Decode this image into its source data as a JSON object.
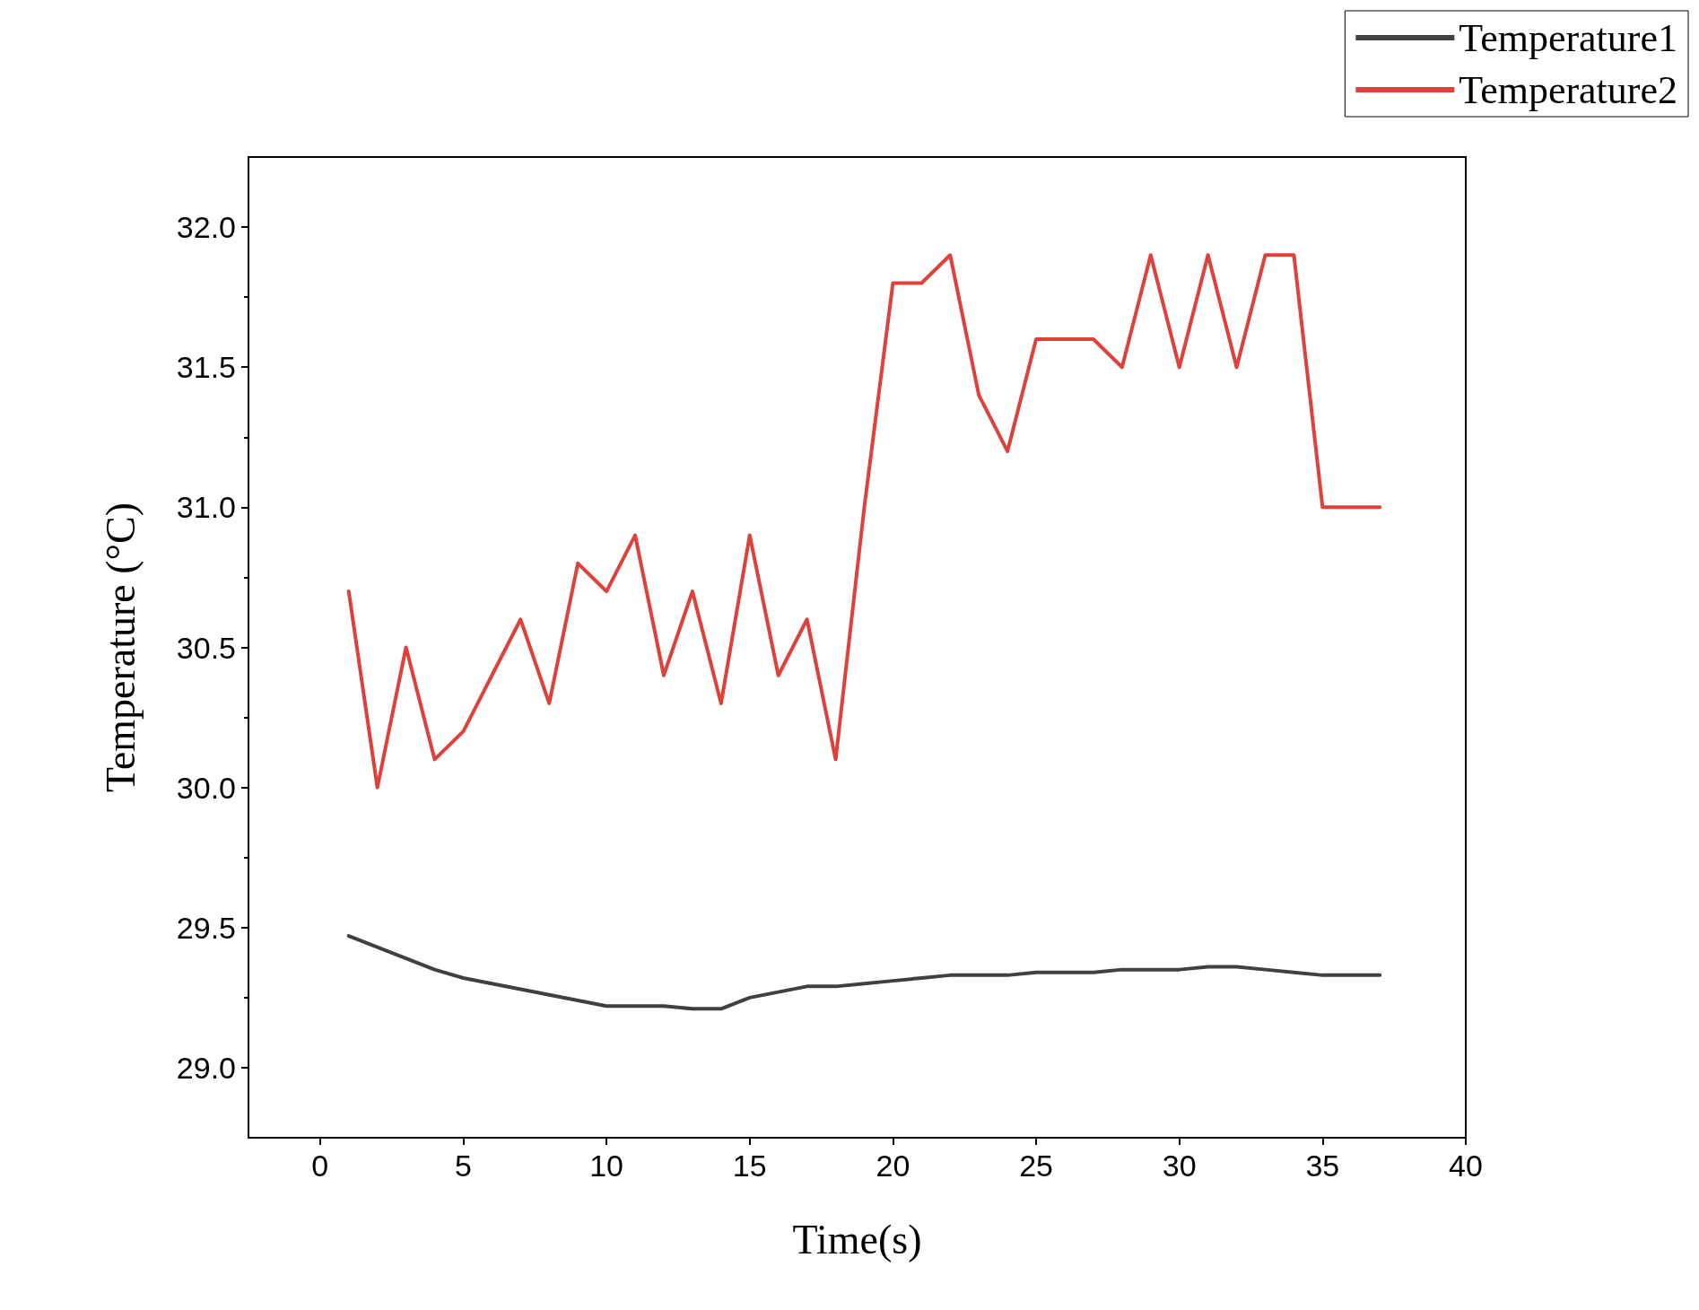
{
  "chart_data": {
    "type": "line",
    "xlabel": "Time(s)",
    "ylabel": "Temperature (°C)",
    "x": [
      1,
      2,
      3,
      4,
      5,
      6,
      7,
      8,
      9,
      10,
      11,
      12,
      13,
      14,
      15,
      16,
      17,
      18,
      19,
      20,
      21,
      22,
      23,
      24,
      25,
      26,
      27,
      28,
      29,
      30,
      31,
      32,
      33,
      34,
      35,
      36,
      37
    ],
    "series": [
      {
        "name": "Temperature1",
        "color": "#404040",
        "values": [
          29.47,
          29.43,
          29.39,
          29.35,
          29.32,
          29.3,
          29.28,
          29.26,
          29.24,
          29.22,
          29.22,
          29.22,
          29.21,
          29.21,
          29.25,
          29.27,
          29.29,
          29.29,
          29.3,
          29.31,
          29.32,
          29.33,
          29.33,
          29.33,
          29.34,
          29.34,
          29.34,
          29.35,
          29.35,
          29.35,
          29.36,
          29.36,
          29.35,
          29.34,
          29.33,
          29.33,
          29.33
        ]
      },
      {
        "name": "Temperature2",
        "color": "#e0403a",
        "values": [
          30.7,
          30.0,
          30.5,
          30.1,
          30.2,
          30.4,
          30.6,
          30.3,
          30.8,
          30.7,
          30.9,
          30.4,
          30.7,
          30.3,
          30.9,
          30.4,
          30.6,
          30.1,
          31.0,
          31.8,
          31.8,
          31.9,
          31.4,
          31.2,
          31.6,
          31.6,
          31.6,
          31.5,
          31.9,
          31.5,
          31.9,
          31.5,
          31.9,
          31.9,
          31.0,
          31.0,
          31.0
        ]
      }
    ],
    "xlim": [
      -2.5,
      40
    ],
    "xticks": [
      0,
      5,
      10,
      15,
      20,
      25,
      30,
      35,
      40
    ],
    "ylim": [
      28.75,
      32.25
    ],
    "yticks": [
      {
        "value": 29,
        "label": "29.0"
      },
      29.5,
      {
        "value": 30,
        "label": "30.0"
      },
      30.5,
      {
        "value": 31,
        "label": "31.0"
      },
      31.5,
      {
        "value": 32,
        "label": "32.0"
      }
    ],
    "grid": false,
    "legend": "top right",
    "marker": "none",
    "line_style": "solid"
  }
}
